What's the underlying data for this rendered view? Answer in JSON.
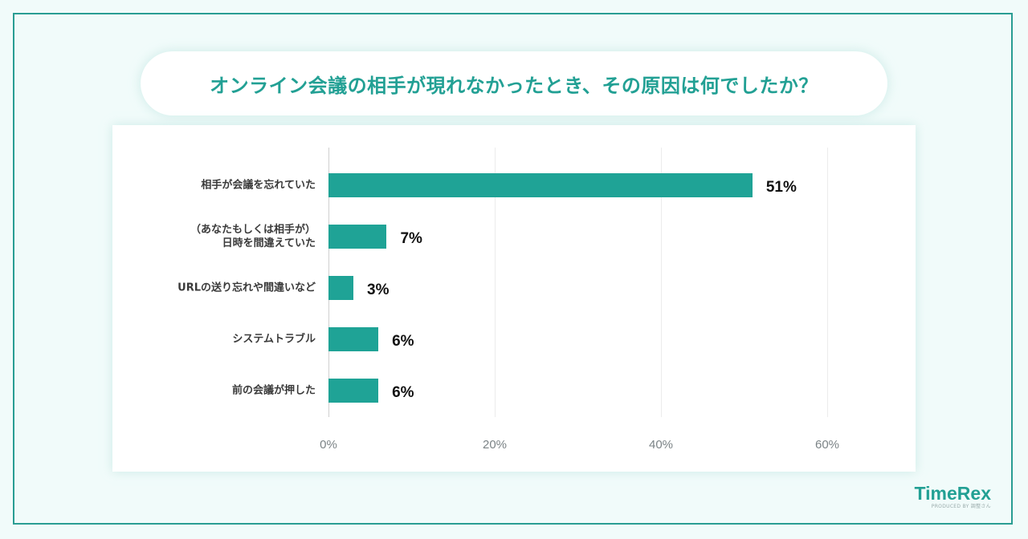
{
  "title": "オンライン会議の相手が現れなかったとき、その原因は何でしたか？",
  "logo": {
    "name": "TimeRex",
    "sub": "PRODUCED BY 調整さん"
  },
  "colors": {
    "bar": "#1fa396",
    "title": "#22a094",
    "frame": "#2a9d93",
    "background": "#f1fbfa"
  },
  "chart_data": {
    "type": "bar",
    "orientation": "horizontal",
    "title": "オンライン会議の相手が現れなかったとき、その原因は何でしたか？",
    "categories": [
      "相手が会議を忘れていた",
      "（あなたもしくは相手が）日時を間違えていた",
      "URLの送り忘れや間違いなど",
      "システムトラブル",
      "前の会議が押した"
    ],
    "values": [
      51,
      7,
      3,
      6,
      6
    ],
    "value_labels": [
      "51%",
      "7%",
      "3%",
      "6%",
      "6%"
    ],
    "xlabel": "",
    "ylabel": "",
    "xlim": [
      0,
      60
    ],
    "xticks": [
      "0%",
      "20%",
      "40%",
      "60%"
    ],
    "grid": true,
    "legend": null
  },
  "rows": [
    {
      "line1": "相手が会議を忘れていた",
      "line2": "",
      "value": "51%"
    },
    {
      "line1": "（あなたもしくは相手が）",
      "line2": "日時を間違えていた",
      "value": "7%"
    },
    {
      "line1": "URLの送り忘れや間違いなど",
      "line2": "",
      "value": "3%"
    },
    {
      "line1": "システムトラブル",
      "line2": "",
      "value": "6%"
    },
    {
      "line1": "前の会議が押した",
      "line2": "",
      "value": "6%"
    }
  ]
}
